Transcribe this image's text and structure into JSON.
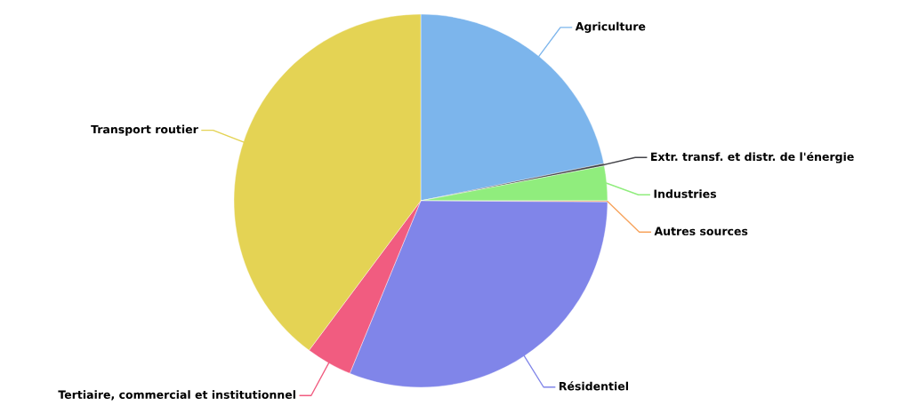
{
  "chart_data": {
    "type": "pie",
    "categories": [
      "Agriculture",
      "Extr. transf. et distr. de l'énergie",
      "Industries",
      "Autres sources",
      "Résidentiel",
      "Tertiaire, commercial et institutionnel",
      "Transport routier"
    ],
    "values": [
      21.8,
      0.2,
      3.0,
      0.1,
      31.1,
      4.0,
      39.8
    ],
    "colors": [
      "#7cb5ec",
      "#434348",
      "#90ed7d",
      "#f7a35c",
      "#8085e9",
      "#f15c80",
      "#e4d354"
    ]
  }
}
